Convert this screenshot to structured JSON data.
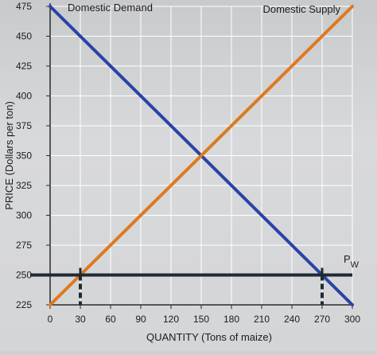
{
  "chart_data": {
    "type": "line",
    "title": "",
    "xlabel": "QUANTITY (Tons of maize)",
    "ylabel": "PRICE (Dollars per ton)",
    "xlim": [
      0,
      300
    ],
    "ylim": [
      225,
      475
    ],
    "x_ticks": [
      "0",
      "30",
      "60",
      "90",
      "120",
      "150",
      "180",
      "210",
      "240",
      "270",
      "300"
    ],
    "y_ticks": [
      "225",
      "250",
      "275",
      "300",
      "325",
      "350",
      "375",
      "400",
      "425",
      "450",
      "475"
    ],
    "x_tick_values": [
      0,
      30,
      60,
      90,
      120,
      150,
      180,
      210,
      240,
      270,
      300
    ],
    "y_tick_values": [
      225,
      250,
      275,
      300,
      325,
      350,
      375,
      400,
      425,
      450,
      475
    ],
    "grid": true,
    "series": [
      {
        "name": "Domestic Demand",
        "color": "#2a43a6",
        "x": [
          0,
          300
        ],
        "y": [
          475,
          225
        ]
      },
      {
        "name": "Domestic Supply",
        "color": "#dd7a1f",
        "x": [
          0,
          300
        ],
        "y": [
          225,
          475
        ]
      }
    ],
    "world_price": {
      "label_main": "P",
      "label_sub": "W",
      "value": 250,
      "color": "#1e2a33"
    },
    "markers": [
      {
        "x": 30,
        "y": 250
      },
      {
        "x": 270,
        "y": 250
      }
    ],
    "marker_color": "#1e2a33"
  }
}
